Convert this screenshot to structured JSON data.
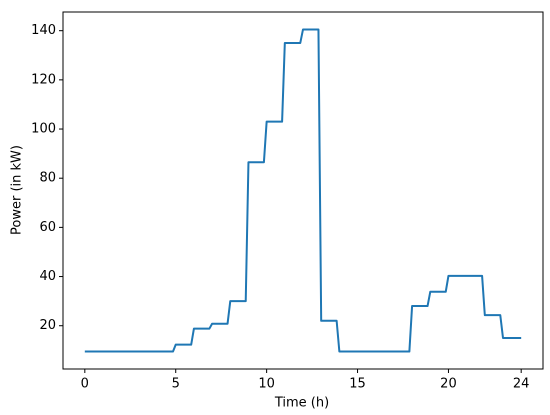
{
  "chart_data": {
    "type": "line",
    "x_label": "Time (h)",
    "y_label": "Power (in kW)",
    "x": [
      0,
      4.85,
      5,
      5.85,
      6,
      6.85,
      7,
      7.85,
      8,
      8.85,
      9,
      9.85,
      10,
      10.85,
      11,
      11.85,
      12,
      12.85,
      13,
      13.85,
      14,
      17.85,
      18,
      18.85,
      19,
      19.85,
      20,
      21.85,
      22,
      22.85,
      23,
      24
    ],
    "series": [
      {
        "color": "#1f77b4",
        "values": [
          9.5,
          9.5,
          12.3,
          12.3,
          18.8,
          18.8,
          20.8,
          20.8,
          30,
          30,
          86.5,
          86.5,
          103,
          103,
          135,
          135,
          140.5,
          140.5,
          22,
          22,
          9.5,
          9.5,
          28,
          28,
          33.8,
          33.8,
          40.3,
          40.3,
          24.3,
          24.3,
          15,
          15
        ]
      }
    ],
    "xlim": [
      -1.2,
      25.2
    ],
    "ylim": [
      2.4,
      147.6
    ],
    "xticks": [
      0,
      5,
      10,
      15,
      20,
      24
    ],
    "yticks": [
      20,
      40,
      60,
      80,
      100,
      120,
      140
    ]
  }
}
